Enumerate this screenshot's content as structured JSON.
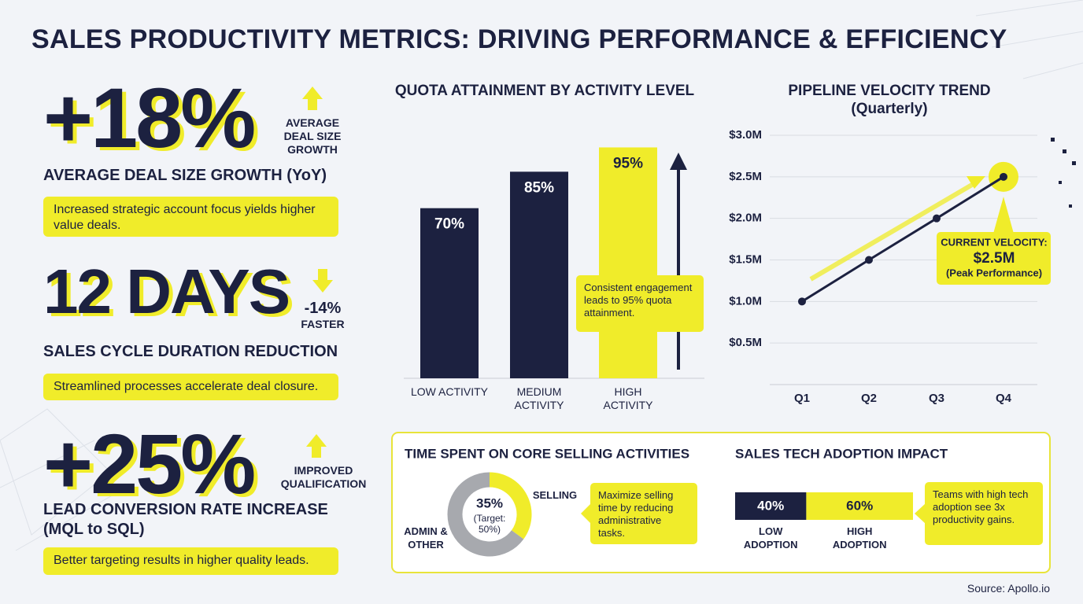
{
  "title": "SALES PRODUCTIVITY METRICS: DRIVING PERFORMANCE & EFFICIENCY",
  "kpis": [
    {
      "value": "+18%",
      "side": "AVERAGE DEAL SIZE GROWTH",
      "heading": "AVERAGE DEAL SIZE GROWTH (YoY)",
      "note": "Increased strategic account focus yields higher value deals."
    },
    {
      "value": "12 DAYS",
      "side_value": "-14%",
      "side": "FASTER",
      "heading": "SALES CYCLE DURATION REDUCTION",
      "note": "Streamlined processes accelerate deal closure."
    },
    {
      "value": "+25%",
      "side": "IMPROVED QUALIFICATION",
      "heading": "LEAD CONVERSION RATE INCREASE (MQL to SQL)",
      "note": "Better targeting results in higher quality leads."
    }
  ],
  "chart_data": [
    {
      "type": "bar",
      "title": "QUOTA ATTAINMENT BY ACTIVITY LEVEL",
      "categories": [
        "LOW ACTIVITY",
        "MEDIUM ACTIVITY",
        "HIGH ACTIVITY"
      ],
      "values": [
        70,
        85,
        95
      ],
      "value_labels": [
        "70%",
        "85%",
        "95%"
      ],
      "colors": [
        "#1c2140",
        "#1c2140",
        "#f0ec2a"
      ],
      "ylim": [
        0,
        100
      ],
      "annotation": "Consistent engagement leads to 95% quota attainment."
    },
    {
      "type": "line",
      "title": "PIPELINE VELOCITY TREND",
      "subtitle": "(Quarterly)",
      "categories": [
        "Q1",
        "Q2",
        "Q3",
        "Q4"
      ],
      "values": [
        1.0,
        1.5,
        2.0,
        2.5
      ],
      "color": "#1c2140",
      "ylim": [
        0,
        3.0
      ],
      "yticks": [
        {
          "value": 0.5,
          "label": "$0.5M"
        },
        {
          "value": 1.0,
          "label": "$1.0M"
        },
        {
          "value": 1.5,
          "label": "$1.5M"
        },
        {
          "value": 2.0,
          "label": "$2.0M"
        },
        {
          "value": 2.5,
          "label": "$2.5M"
        },
        {
          "value": 3.0,
          "label": "$3.0M"
        }
      ],
      "grid": true,
      "annotation": [
        "CURRENT VELOCITY:",
        "$2.5M",
        "(Peak Performance)"
      ]
    },
    {
      "type": "donut",
      "title": "TIME SPENT ON CORE SELLING ACTIVITIES",
      "categories": [
        "SELLING",
        "ADMIN & OTHER"
      ],
      "values": [
        35,
        65
      ],
      "colors": [
        "#f0ec2a",
        "#a7a9ae"
      ],
      "center_label": "35%",
      "center_note": "(Target: 50%)",
      "annotation": "Maximize selling time by reducing administrative tasks."
    },
    {
      "type": "stacked_bar",
      "title": "SALES TECH ADOPTION IMPACT",
      "categories": [
        "LOW ADOPTION",
        "HIGH ADOPTION"
      ],
      "values": [
        40,
        60
      ],
      "value_labels": [
        "40%",
        "60%"
      ],
      "colors": [
        "#1c2140",
        "#f0ec2a"
      ],
      "annotation": "Teams with high tech adoption see 3x productivity gains."
    }
  ],
  "source": "Source: Apollo.io"
}
